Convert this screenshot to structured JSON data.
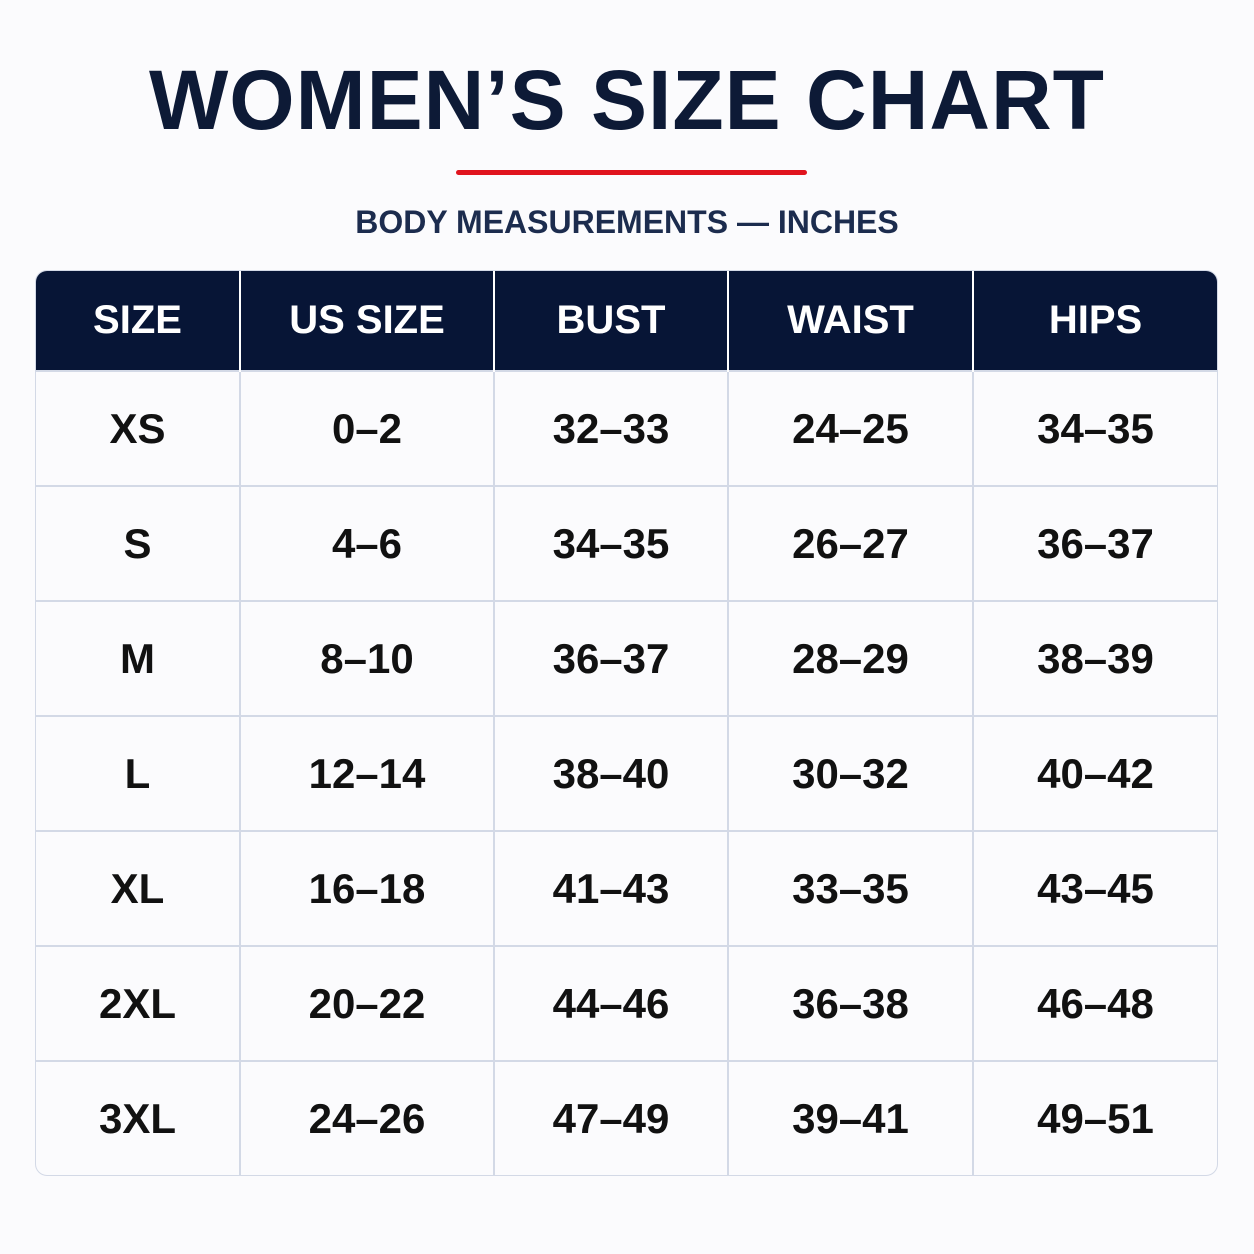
{
  "header": {
    "title": "WOMEN’S SIZE CHART",
    "subtitle": "BODY MEASUREMENTS — INCHES"
  },
  "table": {
    "columns": [
      "SIZE",
      "US SIZE",
      "BUST",
      "WAIST",
      "HIPS"
    ],
    "rows": [
      [
        "XS",
        "0–2",
        "32–33",
        "24–25",
        "34–35"
      ],
      [
        "S",
        "4–6",
        "34–35",
        "26–27",
        "36–37"
      ],
      [
        "M",
        "8–10",
        "36–37",
        "28–29",
        "38–39"
      ],
      [
        "L",
        "12–14",
        "38–40",
        "30–32",
        "40–42"
      ],
      [
        "XL",
        "16–18",
        "41–43",
        "33–35",
        "43–45"
      ],
      [
        "2XL",
        "20–22",
        "44–46",
        "36–38",
        "46–48"
      ],
      [
        "3XL",
        "24–26",
        "47–49",
        "39–41",
        "49–51"
      ]
    ]
  }
}
